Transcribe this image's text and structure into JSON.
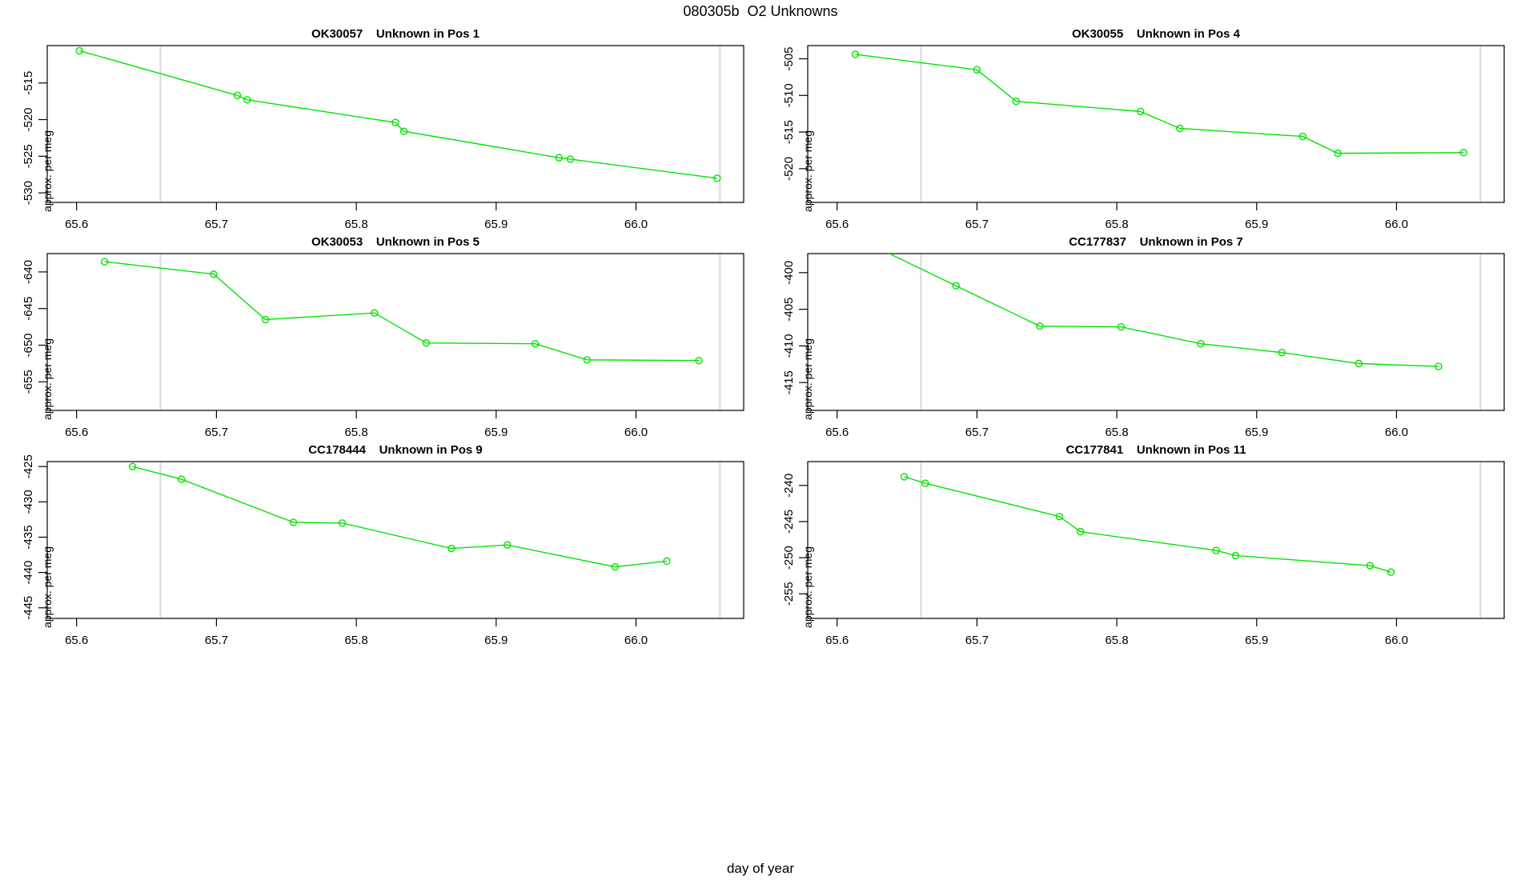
{
  "page_title": "080305b  O2 Unknowns",
  "outer_xlabel": "day of year",
  "colors": {
    "series_line": "#00E400",
    "marker_stroke": "#00E400",
    "reference_line": "#DADADA",
    "axis": "#000000",
    "text": "#000000"
  },
  "axes_shared": {
    "xlim": [
      65.579,
      66.077
    ],
    "xticks": [
      65.6,
      65.7,
      65.8,
      65.9,
      66.0
    ],
    "xtick_labels": [
      "65.6",
      "65.7",
      "65.8",
      "65.9",
      "66.0"
    ],
    "ref_lines_x": [
      65.66,
      66.06
    ],
    "grid": "off",
    "legend": "none"
  },
  "chart_data": [
    {
      "type": "line",
      "sample_id": "OK30057",
      "position_label": "Unknown in Pos 1",
      "title": "OK30057    Unknown in Pos 1",
      "ylabel": "approx. per meg",
      "x": [
        65.602,
        65.715,
        65.722,
        65.828,
        65.834,
        65.945,
        65.953,
        66.058
      ],
      "y": [
        -510.6,
        -516.7,
        -517.3,
        -520.4,
        -521.6,
        -525.2,
        -525.4,
        -528.0
      ],
      "ylim": [
        -531.3,
        -509.9
      ],
      "yticks": [
        -515,
        -520,
        -525,
        -530
      ],
      "ytick_labels": [
        "-515",
        "-520",
        "-525",
        "-530"
      ]
    },
    {
      "type": "line",
      "sample_id": "OK30055",
      "position_label": "Unknown in Pos 4",
      "title": "OK30055    Unknown in Pos 4",
      "ylabel": "approx. per meg",
      "x": [
        65.613,
        65.7,
        65.728,
        65.817,
        65.845,
        65.933,
        65.958,
        66.048
      ],
      "y": [
        -504.4,
        -506.5,
        -510.8,
        -512.2,
        -514.5,
        -515.6,
        -517.9,
        -517.8
      ],
      "ylim": [
        -524.6,
        -503.2
      ],
      "yticks": [
        -505,
        -510,
        -515,
        -520
      ],
      "ytick_labels": [
        "-505",
        "-510",
        "-515",
        "-520"
      ]
    },
    {
      "type": "line",
      "sample_id": "OK30053",
      "position_label": "Unknown in Pos 5",
      "title": "OK30053    Unknown in Pos 5",
      "ylabel": "approx. per meg",
      "x": [
        65.62,
        65.698,
        65.735,
        65.813,
        65.85,
        65.928,
        65.965,
        66.045
      ],
      "y": [
        -638.6,
        -640.3,
        -646.5,
        -645.6,
        -649.7,
        -649.8,
        -652.0,
        -652.1
      ],
      "ylim": [
        -658.9,
        -637.5
      ],
      "yticks": [
        -640,
        -645,
        -650,
        -655
      ],
      "ytick_labels": [
        "-640",
        "-645",
        "-650",
        "-655"
      ]
    },
    {
      "type": "line",
      "sample_id": "CC177837",
      "position_label": "Unknown in Pos 7",
      "title": "CC177837    Unknown in Pos 7",
      "ylabel": "approx. per meg",
      "x": [
        65.62,
        65.685,
        65.745,
        65.803,
        65.86,
        65.918,
        65.973,
        66.03
      ],
      "y": [
        -395.8,
        -401.8,
        -407.3,
        -407.4,
        -409.7,
        -410.9,
        -412.4,
        -412.8
      ],
      "ylim": [
        -418.8,
        -397.4
      ],
      "yticks": [
        -400,
        -405,
        -410,
        -415
      ],
      "ytick_labels": [
        "-400",
        "-405",
        "-410",
        "-415"
      ]
    },
    {
      "type": "line",
      "sample_id": "CC178444",
      "position_label": "Unknown in Pos 9",
      "title": "CC178444    Unknown in Pos 9",
      "ylabel": "approx. per meg",
      "x": [
        65.64,
        65.675,
        65.755,
        65.79,
        65.868,
        65.908,
        65.985,
        66.022
      ],
      "y": [
        -425.0,
        -426.8,
        -432.9,
        -433.0,
        -436.6,
        -436.1,
        -439.2,
        -438.4
      ],
      "ylim": [
        -446.5,
        -424.3
      ],
      "yticks": [
        -425,
        -430,
        -435,
        -440,
        -445
      ],
      "ytick_labels": [
        "-425",
        "-430",
        "-435",
        "-440",
        "-445"
      ]
    },
    {
      "type": "line",
      "sample_id": "CC177841",
      "position_label": "Unknown in Pos 11",
      "title": "CC177841    Unknown in Pos 11",
      "ylabel": "approx. per meg",
      "x": [
        65.648,
        65.663,
        65.759,
        65.774,
        65.871,
        65.885,
        65.981,
        65.996
      ],
      "y": [
        -238.8,
        -239.7,
        -244.3,
        -246.4,
        -249.0,
        -249.7,
        -251.1,
        -252.0
      ],
      "ylim": [
        -258.4,
        -236.7
      ],
      "yticks": [
        -240,
        -245,
        -250,
        -255
      ],
      "ytick_labels": [
        "-240",
        "-245",
        "-250",
        "-255"
      ]
    }
  ]
}
